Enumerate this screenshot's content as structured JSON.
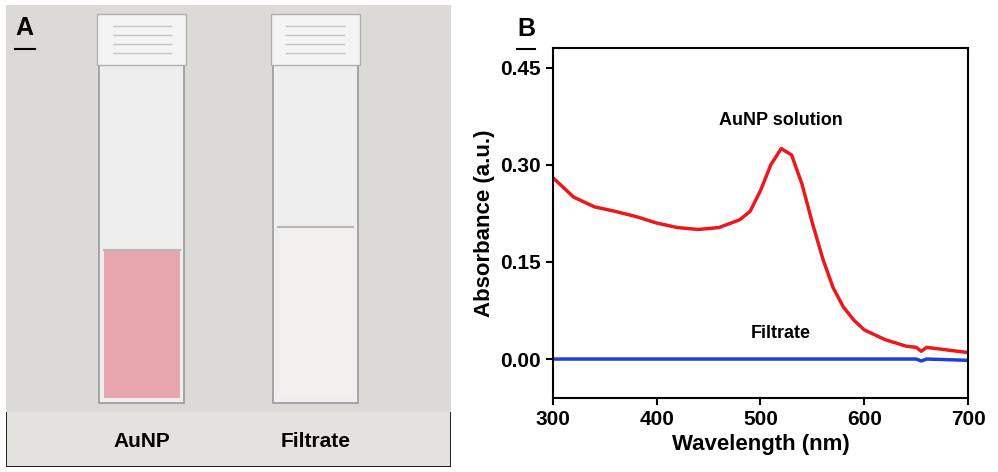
{
  "photo": {
    "label": "A",
    "cuvettes": [
      {
        "label": "AuNP",
        "color": "#e6a6ae"
      },
      {
        "label": "Filtrate",
        "color": "#f1f0ef"
      }
    ]
  },
  "chart_data": {
    "label": "B",
    "type": "line",
    "x_label": "Wavelength (nm)",
    "y_label": "Absorbance (a.u.)",
    "xlim": [
      300,
      700
    ],
    "xticks": [
      300,
      400,
      500,
      600,
      700
    ],
    "ylim": [
      -0.06,
      0.48
    ],
    "yticks": [
      {
        "value": 0,
        "label": "0.00"
      },
      {
        "value": 0.15,
        "label": "0.15"
      },
      {
        "value": 0.3,
        "label": "0.30"
      },
      {
        "value": 0.45,
        "label": "0.45"
      }
    ],
    "series": [
      {
        "name": "AuNP solution",
        "color": "#e8191f",
        "x": [
          300,
          310,
          320,
          340,
          360,
          380,
          400,
          420,
          440,
          460,
          480,
          490,
          500,
          510,
          520,
          530,
          540,
          550,
          560,
          570,
          580,
          590,
          600,
          620,
          640,
          650,
          655,
          660,
          680,
          700
        ],
        "values": [
          0.28,
          0.265,
          0.25,
          0.235,
          0.228,
          0.22,
          0.21,
          0.203,
          0.2,
          0.203,
          0.215,
          0.228,
          0.26,
          0.3,
          0.325,
          0.315,
          0.27,
          0.21,
          0.155,
          0.11,
          0.08,
          0.06,
          0.045,
          0.03,
          0.02,
          0.018,
          0.012,
          0.018,
          0.014,
          0.01
        ]
      },
      {
        "name": "Filtrate",
        "color": "#1f3fd6",
        "x": [
          300,
          400,
          500,
          600,
          650,
          655,
          660,
          700
        ],
        "values": [
          0,
          0,
          0,
          0,
          0,
          -0.003,
          0,
          -0.002
        ]
      }
    ]
  }
}
